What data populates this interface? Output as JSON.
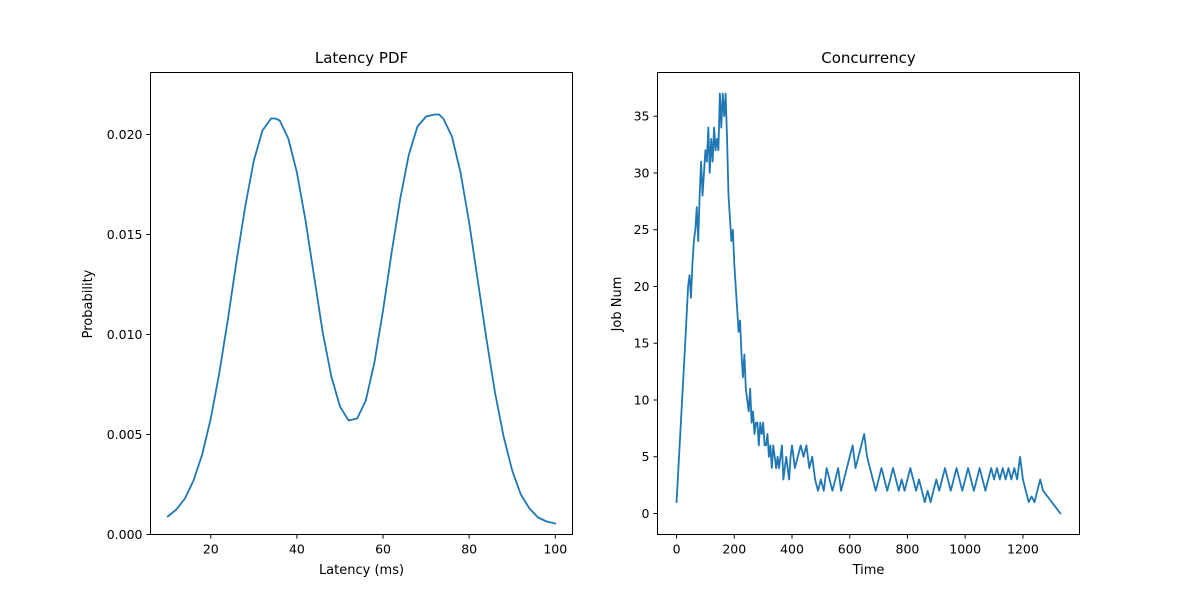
{
  "chart_data": [
    {
      "type": "line",
      "title": "Latency PDF",
      "xlabel": "Latency (ms)",
      "ylabel": "Probability",
      "xlim": [
        6,
        104
      ],
      "ylim": [
        0,
        0.0231
      ],
      "xticks": [
        20,
        40,
        60,
        80,
        100
      ],
      "xtick_labels": [
        "20",
        "40",
        "60",
        "80",
        "100"
      ],
      "yticks": [
        0,
        0.005,
        0.01,
        0.015,
        0.02
      ],
      "ytick_labels": [
        "0.000",
        "0.005",
        "0.010",
        "0.015",
        "0.020"
      ],
      "grid": false,
      "series": [
        {
          "color": "#1f77b4",
          "x": [
            10,
            12,
            14,
            16,
            18,
            20,
            22,
            24,
            26,
            28,
            30,
            32,
            34,
            35,
            36,
            38,
            40,
            42,
            44,
            46,
            48,
            50,
            52,
            54,
            56,
            58,
            60,
            62,
            64,
            66,
            68,
            70,
            72,
            73,
            74,
            76,
            78,
            80,
            82,
            84,
            86,
            88,
            90,
            92,
            94,
            96,
            98,
            100
          ],
          "y": [
            0.0009,
            0.00125,
            0.0018,
            0.0027,
            0.004,
            0.0058,
            0.0081,
            0.0108,
            0.0137,
            0.0164,
            0.0187,
            0.0202,
            0.0208,
            0.0208,
            0.0207,
            0.0198,
            0.0181,
            0.0157,
            0.0129,
            0.0101,
            0.0079,
            0.0064,
            0.0057,
            0.0058,
            0.0067,
            0.0086,
            0.0112,
            0.0141,
            0.0168,
            0.019,
            0.0204,
            0.0209,
            0.021,
            0.021,
            0.0208,
            0.0199,
            0.0181,
            0.0156,
            0.0127,
            0.0098,
            0.0071,
            0.0049,
            0.0032,
            0.002,
            0.0013,
            0.00085,
            0.00065,
            0.00055
          ]
        }
      ]
    },
    {
      "type": "line",
      "title": "Concurrency",
      "xlabel": "Time",
      "ylabel": "Job Num",
      "xlim": [
        -66,
        1396
      ],
      "ylim": [
        -1.85,
        38.85
      ],
      "xticks": [
        0,
        200,
        400,
        600,
        800,
        1000,
        1200
      ],
      "xtick_labels": [
        "0",
        "200",
        "400",
        "600",
        "800",
        "1000",
        "1200"
      ],
      "yticks": [
        0,
        5,
        10,
        15,
        20,
        25,
        30,
        35
      ],
      "ytick_labels": [
        "0",
        "5",
        "10",
        "15",
        "20",
        "25",
        "30",
        "35"
      ],
      "grid": false,
      "series": [
        {
          "color": "#1f77b4",
          "x": [
            0,
            15,
            30,
            40,
            45,
            50,
            55,
            60,
            65,
            70,
            75,
            80,
            85,
            90,
            95,
            100,
            105,
            110,
            115,
            120,
            125,
            130,
            135,
            140,
            145,
            150,
            155,
            160,
            165,
            170,
            175,
            180,
            185,
            190,
            195,
            200,
            205,
            210,
            215,
            220,
            225,
            230,
            235,
            240,
            245,
            250,
            255,
            260,
            265,
            270,
            275,
            280,
            285,
            290,
            295,
            300,
            305,
            310,
            315,
            320,
            325,
            330,
            335,
            340,
            345,
            350,
            355,
            360,
            365,
            370,
            375,
            380,
            385,
            390,
            395,
            400,
            410,
            420,
            430,
            440,
            450,
            460,
            470,
            480,
            490,
            500,
            510,
            520,
            530,
            540,
            550,
            560,
            570,
            580,
            590,
            600,
            610,
            620,
            630,
            640,
            650,
            660,
            670,
            680,
            690,
            700,
            710,
            720,
            730,
            740,
            750,
            760,
            770,
            780,
            790,
            800,
            810,
            820,
            830,
            840,
            850,
            860,
            870,
            880,
            890,
            900,
            910,
            920,
            930,
            940,
            950,
            960,
            970,
            980,
            990,
            1000,
            1010,
            1020,
            1030,
            1040,
            1050,
            1060,
            1070,
            1080,
            1090,
            1100,
            1110,
            1120,
            1130,
            1140,
            1150,
            1160,
            1170,
            1180,
            1190,
            1200,
            1210,
            1220,
            1230,
            1240,
            1250,
            1260,
            1270,
            1330
          ],
          "y": [
            1,
            8,
            15,
            20,
            21,
            19,
            22,
            24,
            25,
            27,
            24,
            28,
            31,
            28,
            30,
            32,
            31,
            34,
            30,
            33,
            31,
            34,
            32,
            33,
            32,
            37,
            34,
            37,
            35,
            37,
            33,
            28,
            26,
            24,
            25,
            22,
            20,
            18,
            16,
            17,
            14,
            12,
            14,
            11,
            10,
            9,
            11,
            8,
            9,
            7,
            8,
            8,
            6,
            8,
            7,
            8,
            6,
            6,
            7,
            5,
            6,
            4,
            6,
            5,
            4,
            5,
            4,
            5,
            6,
            3,
            4,
            5,
            4,
            3,
            5,
            6,
            4,
            5,
            6,
            5,
            6,
            4,
            5,
            3,
            2,
            3,
            2,
            4,
            3,
            2,
            3,
            4,
            2,
            3,
            4,
            5,
            6,
            4,
            5,
            6,
            7,
            5,
            4,
            3,
            2,
            3,
            4,
            3,
            2,
            3,
            4,
            3,
            2,
            3,
            2,
            3,
            4,
            3,
            2,
            3,
            2,
            1,
            2,
            1,
            2,
            3,
            2,
            3,
            4,
            3,
            2,
            3,
            4,
            3,
            2,
            3,
            4,
            3,
            2,
            3,
            4,
            3,
            2,
            3,
            4,
            3,
            4,
            3,
            4,
            3,
            4,
            3,
            4,
            3,
            5,
            3,
            2,
            1,
            1.5,
            1,
            2,
            3,
            2,
            0
          ]
        }
      ]
    }
  ]
}
